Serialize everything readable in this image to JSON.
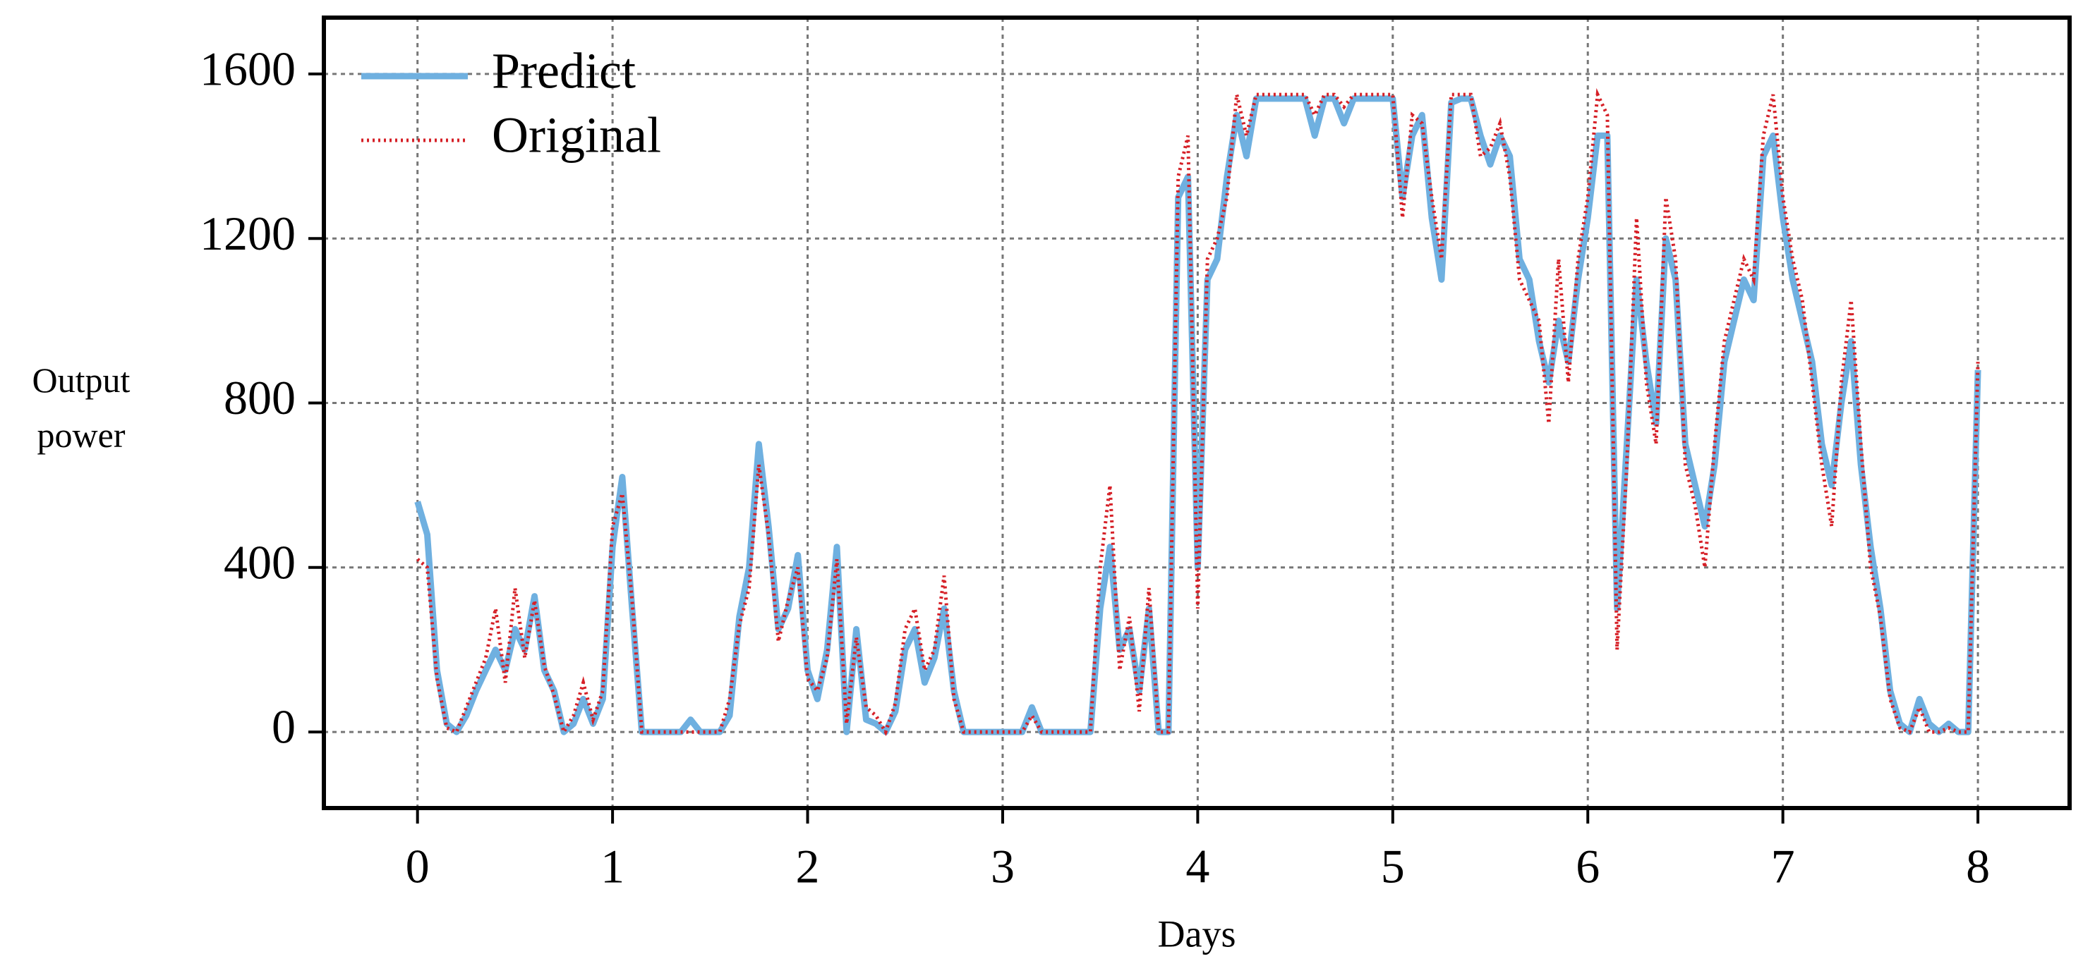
{
  "chart_data": {
    "type": "line",
    "x_label": "Days",
    "y_label": "Output power",
    "x": [
      0,
      0.05,
      0.1,
      0.15,
      0.2,
      0.25,
      0.3,
      0.35,
      0.4,
      0.45,
      0.5,
      0.55,
      0.6,
      0.65,
      0.7,
      0.75,
      0.8,
      0.85,
      0.9,
      0.95,
      1,
      1.05,
      1.1,
      1.15,
      1.2,
      1.25,
      1.3,
      1.35,
      1.4,
      1.45,
      1.5,
      1.55,
      1.6,
      1.65,
      1.7,
      1.75,
      1.8,
      1.85,
      1.9,
      1.95,
      2,
      2.05,
      2.1,
      2.15,
      2.2,
      2.25,
      2.3,
      2.35,
      2.4,
      2.45,
      2.5,
      2.55,
      2.6,
      2.65,
      2.7,
      2.75,
      2.8,
      2.85,
      2.9,
      2.95,
      3,
      3.05,
      3.1,
      3.15,
      3.2,
      3.25,
      3.3,
      3.35,
      3.4,
      3.45,
      3.5,
      3.55,
      3.6,
      3.65,
      3.7,
      3.75,
      3.8,
      3.85,
      3.9,
      3.95,
      4,
      4.05,
      4.1,
      4.15,
      4.2,
      4.25,
      4.3,
      4.35,
      4.4,
      4.45,
      4.5,
      4.55,
      4.6,
      4.65,
      4.7,
      4.75,
      4.8,
      4.85,
      4.9,
      4.95,
      5,
      5.05,
      5.1,
      5.15,
      5.2,
      5.25,
      5.3,
      5.35,
      5.4,
      5.45,
      5.5,
      5.55,
      5.6,
      5.65,
      5.7,
      5.75,
      5.8,
      5.85,
      5.9,
      5.95,
      6,
      6.05,
      6.1,
      6.15,
      6.2,
      6.25,
      6.3,
      6.35,
      6.4,
      6.45,
      6.5,
      6.55,
      6.6,
      6.65,
      6.7,
      6.75,
      6.8,
      6.85,
      6.9,
      6.95,
      7,
      7.05,
      7.1,
      7.15,
      7.2,
      7.25,
      7.3,
      7.35,
      7.4,
      7.45,
      7.5,
      7.55,
      7.6,
      7.65,
      7.7,
      7.75,
      7.8,
      7.85,
      7.9,
      7.95,
      8
    ],
    "series": [
      {
        "name": "Predict",
        "color": "#6fb0e0",
        "values": [
          560,
          480,
          150,
          20,
          0,
          40,
          100,
          150,
          200,
          150,
          250,
          200,
          330,
          150,
          100,
          0,
          20,
          80,
          20,
          80,
          450,
          620,
          300,
          0,
          0,
          0,
          0,
          0,
          30,
          0,
          0,
          0,
          40,
          280,
          400,
          700,
          500,
          250,
          300,
          430,
          150,
          80,
          200,
          450,
          0,
          250,
          30,
          20,
          0,
          50,
          200,
          250,
          120,
          180,
          300,
          100,
          0,
          0,
          0,
          0,
          0,
          0,
          0,
          60,
          0,
          0,
          0,
          0,
          0,
          0,
          300,
          450,
          200,
          250,
          100,
          300,
          0,
          0,
          1300,
          1350,
          400,
          1100,
          1150,
          1350,
          1500,
          1400,
          1540,
          1540,
          1540,
          1540,
          1540,
          1540,
          1450,
          1540,
          1540,
          1480,
          1540,
          1540,
          1540,
          1540,
          1540,
          1300,
          1450,
          1500,
          1250,
          1100,
          1530,
          1540,
          1540,
          1450,
          1380,
          1450,
          1400,
          1150,
          1100,
          950,
          850,
          1000,
          900,
          1100,
          1250,
          1450,
          1450,
          300,
          700,
          1100,
          900,
          750,
          1200,
          1100,
          700,
          600,
          500,
          650,
          900,
          1000,
          1100,
          1050,
          1400,
          1450,
          1250,
          1100,
          1000,
          900,
          700,
          600,
          800,
          950,
          650,
          450,
          300,
          100,
          20,
          0,
          80,
          20,
          0,
          20,
          0,
          0,
          880
        ]
      },
      {
        "name": "Original",
        "color": "#d62027",
        "values": [
          420,
          400,
          130,
          10,
          0,
          60,
          120,
          180,
          300,
          120,
          350,
          180,
          320,
          160,
          90,
          0,
          40,
          120,
          30,
          100,
          500,
          580,
          320,
          0,
          0,
          0,
          0,
          0,
          0,
          0,
          0,
          0,
          80,
          260,
          350,
          650,
          480,
          220,
          320,
          400,
          130,
          100,
          180,
          420,
          20,
          230,
          60,
          40,
          0,
          70,
          250,
          300,
          150,
          200,
          380,
          80,
          0,
          0,
          0,
          0,
          0,
          0,
          0,
          40,
          0,
          0,
          0,
          0,
          0,
          0,
          400,
          600,
          150,
          280,
          50,
          350,
          0,
          0,
          1350,
          1450,
          300,
          1150,
          1200,
          1300,
          1550,
          1450,
          1550,
          1550,
          1550,
          1550,
          1550,
          1550,
          1500,
          1550,
          1550,
          1520,
          1550,
          1550,
          1550,
          1550,
          1550,
          1250,
          1500,
          1480,
          1300,
          1150,
          1550,
          1550,
          1550,
          1400,
          1420,
          1480,
          1350,
          1100,
          1050,
          1000,
          750,
          1150,
          850,
          1150,
          1300,
          1550,
          1500,
          200,
          650,
          1250,
          850,
          700,
          1300,
          1150,
          650,
          550,
          400,
          700,
          950,
          1050,
          1150,
          1100,
          1450,
          1550,
          1300,
          1150,
          1050,
          850,
          650,
          500,
          850,
          1050,
          700,
          400,
          280,
          80,
          10,
          0,
          60,
          0,
          0,
          10,
          0,
          0,
          900
        ]
      }
    ],
    "xlim": [
      -0.48,
      8.47
    ],
    "ylim": [
      -185,
      1737
    ],
    "xticks": [
      0,
      1,
      2,
      3,
      4,
      5,
      6,
      7,
      8
    ],
    "yticks": [
      0,
      400,
      800,
      1200,
      1600
    ],
    "grid": true,
    "legend": "top-left"
  }
}
